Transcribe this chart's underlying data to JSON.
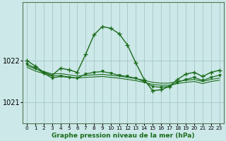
{
  "title": "Graphe pression niveau de la mer (hPa)",
  "bg_color": "#cce8e8",
  "grid_color": "#aacccc",
  "line_color": "#1a6b1a",
  "ylim": [
    1020.5,
    1023.4
  ],
  "yticks": [
    1021,
    1022
  ],
  "xlim": [
    -0.5,
    23.5
  ],
  "xticks": [
    0,
    1,
    2,
    3,
    4,
    5,
    6,
    7,
    8,
    9,
    10,
    11,
    12,
    13,
    14,
    15,
    16,
    17,
    18,
    19,
    20,
    21,
    22,
    23
  ],
  "series_spike": [
    1022.0,
    1021.87,
    1021.72,
    1021.65,
    1021.82,
    1021.78,
    1021.72,
    1022.15,
    1022.62,
    1022.82,
    1022.78,
    1022.65,
    1022.38,
    1021.95,
    1021.55,
    1021.28,
    1021.3,
    1021.38,
    1021.55,
    1021.68,
    1021.72,
    1021.62,
    1021.72,
    1021.77
  ],
  "series_flat1": [
    1021.88,
    1021.8,
    1021.74,
    1021.68,
    1021.69,
    1021.66,
    1021.63,
    1021.65,
    1021.66,
    1021.67,
    1021.65,
    1021.63,
    1021.6,
    1021.57,
    1021.53,
    1021.48,
    1021.46,
    1021.46,
    1021.5,
    1021.53,
    1021.55,
    1021.5,
    1021.55,
    1021.58
  ],
  "series_flat2": [
    1021.84,
    1021.75,
    1021.69,
    1021.63,
    1021.64,
    1021.61,
    1021.58,
    1021.6,
    1021.61,
    1021.62,
    1021.6,
    1021.58,
    1021.55,
    1021.52,
    1021.48,
    1021.43,
    1021.41,
    1021.41,
    1021.45,
    1021.48,
    1021.5,
    1021.45,
    1021.5,
    1021.53
  ],
  "series_mid": [
    1021.92,
    1021.82,
    1021.7,
    1021.58,
    1021.62,
    1021.6,
    1021.58,
    1021.68,
    1021.72,
    1021.74,
    1021.7,
    1021.65,
    1021.62,
    1021.58,
    1021.5,
    1021.38,
    1021.36,
    1021.38,
    1021.48,
    1021.55,
    1021.6,
    1021.52,
    1021.6,
    1021.65
  ],
  "ylabel_1021_y": 1021,
  "ylabel_1022_y": 1022
}
